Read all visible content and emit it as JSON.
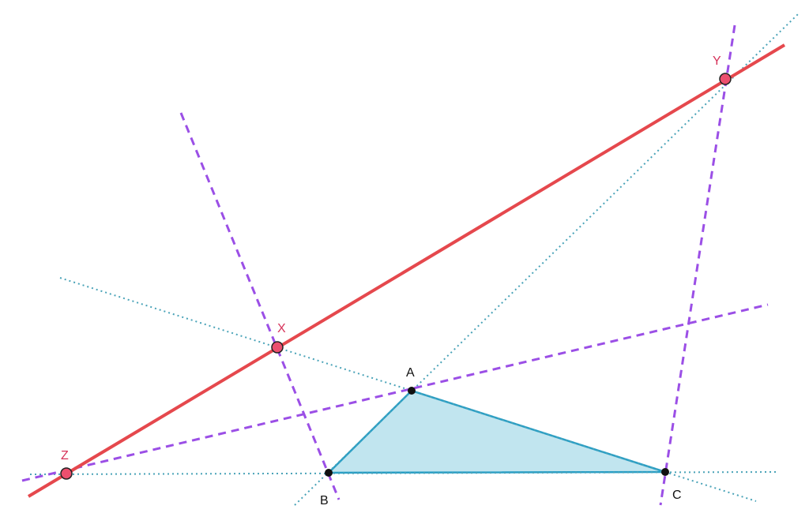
{
  "points": [
    {
      "label": "A"
    },
    {
      "label": "B"
    },
    {
      "label": "C"
    },
    {
      "label": "X"
    },
    {
      "label": "Y"
    },
    {
      "label": "Z"
    }
  ]
}
